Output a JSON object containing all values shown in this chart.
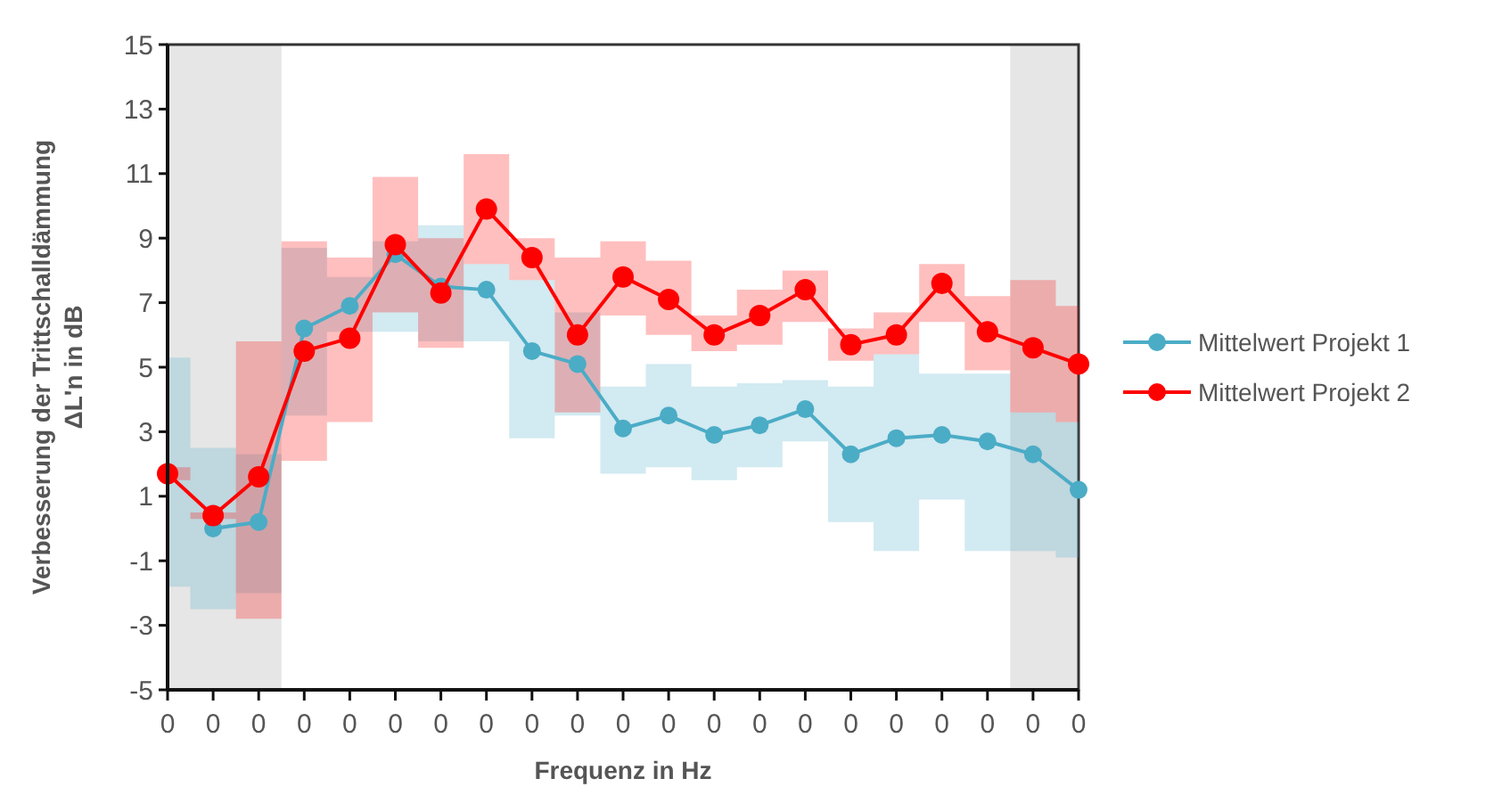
{
  "chart_data": {
    "type": "line",
    "xlabel": "Frequenz in Hz",
    "ylabel": "Verbesserung der Trittschalldämmung\nΔL'n in dB",
    "categories": [
      "0",
      "0",
      "0",
      "0",
      "0",
      "0",
      "0",
      "0",
      "0",
      "0",
      "0",
      "0",
      "0",
      "0",
      "0",
      "0",
      "0",
      "0",
      "0",
      "0",
      "0"
    ],
    "ylim": [
      -5,
      15
    ],
    "yticks": [
      -5,
      -3,
      -1,
      1,
      3,
      5,
      7,
      9,
      11,
      13,
      15
    ],
    "grid": false,
    "legend": "right",
    "marker": "circle",
    "line_style": "solid",
    "series": [
      {
        "name": "Mittelwert Projekt 1",
        "color": "#4bacc6",
        "values": [
          null,
          0.0,
          0.2,
          6.2,
          6.9,
          8.5,
          7.5,
          7.4,
          5.5,
          5.1,
          3.1,
          3.5,
          2.9,
          3.2,
          3.7,
          2.3,
          2.8,
          2.9,
          2.7,
          2.3,
          1.2
        ],
        "lower": [
          -1.8,
          -2.5,
          -2.0,
          3.5,
          6.1,
          6.1,
          5.8,
          5.8,
          2.8,
          3.5,
          1.7,
          1.9,
          1.5,
          1.9,
          2.7,
          0.2,
          -0.7,
          0.9,
          -0.7,
          -0.7,
          -0.9
        ],
        "upper": [
          5.3,
          2.5,
          2.3,
          8.7,
          7.8,
          8.9,
          9.4,
          8.2,
          7.7,
          6.7,
          4.4,
          5.1,
          4.4,
          4.5,
          4.6,
          4.4,
          5.4,
          4.8,
          4.8,
          3.6,
          3.3
        ]
      },
      {
        "name": "Mittelwert Projekt 2",
        "color": "#ff0000",
        "values": [
          1.7,
          0.4,
          1.6,
          5.5,
          5.9,
          8.8,
          7.3,
          9.9,
          8.4,
          6.0,
          7.8,
          7.1,
          6.0,
          6.6,
          7.4,
          5.7,
          6.0,
          7.6,
          6.1,
          5.6,
          5.1
        ],
        "lower": [
          1.5,
          0.3,
          -2.8,
          2.1,
          3.3,
          6.7,
          5.6,
          8.2,
          7.7,
          3.6,
          6.6,
          6.0,
          5.5,
          5.7,
          6.4,
          5.2,
          5.4,
          6.4,
          4.9,
          3.6,
          3.3
        ],
        "upper": [
          1.9,
          0.5,
          5.8,
          8.9,
          8.4,
          10.9,
          9.0,
          11.6,
          9.0,
          8.4,
          8.9,
          8.3,
          6.6,
          7.4,
          8.0,
          6.2,
          6.7,
          8.2,
          7.2,
          7.7,
          6.9
        ]
      }
    ]
  }
}
